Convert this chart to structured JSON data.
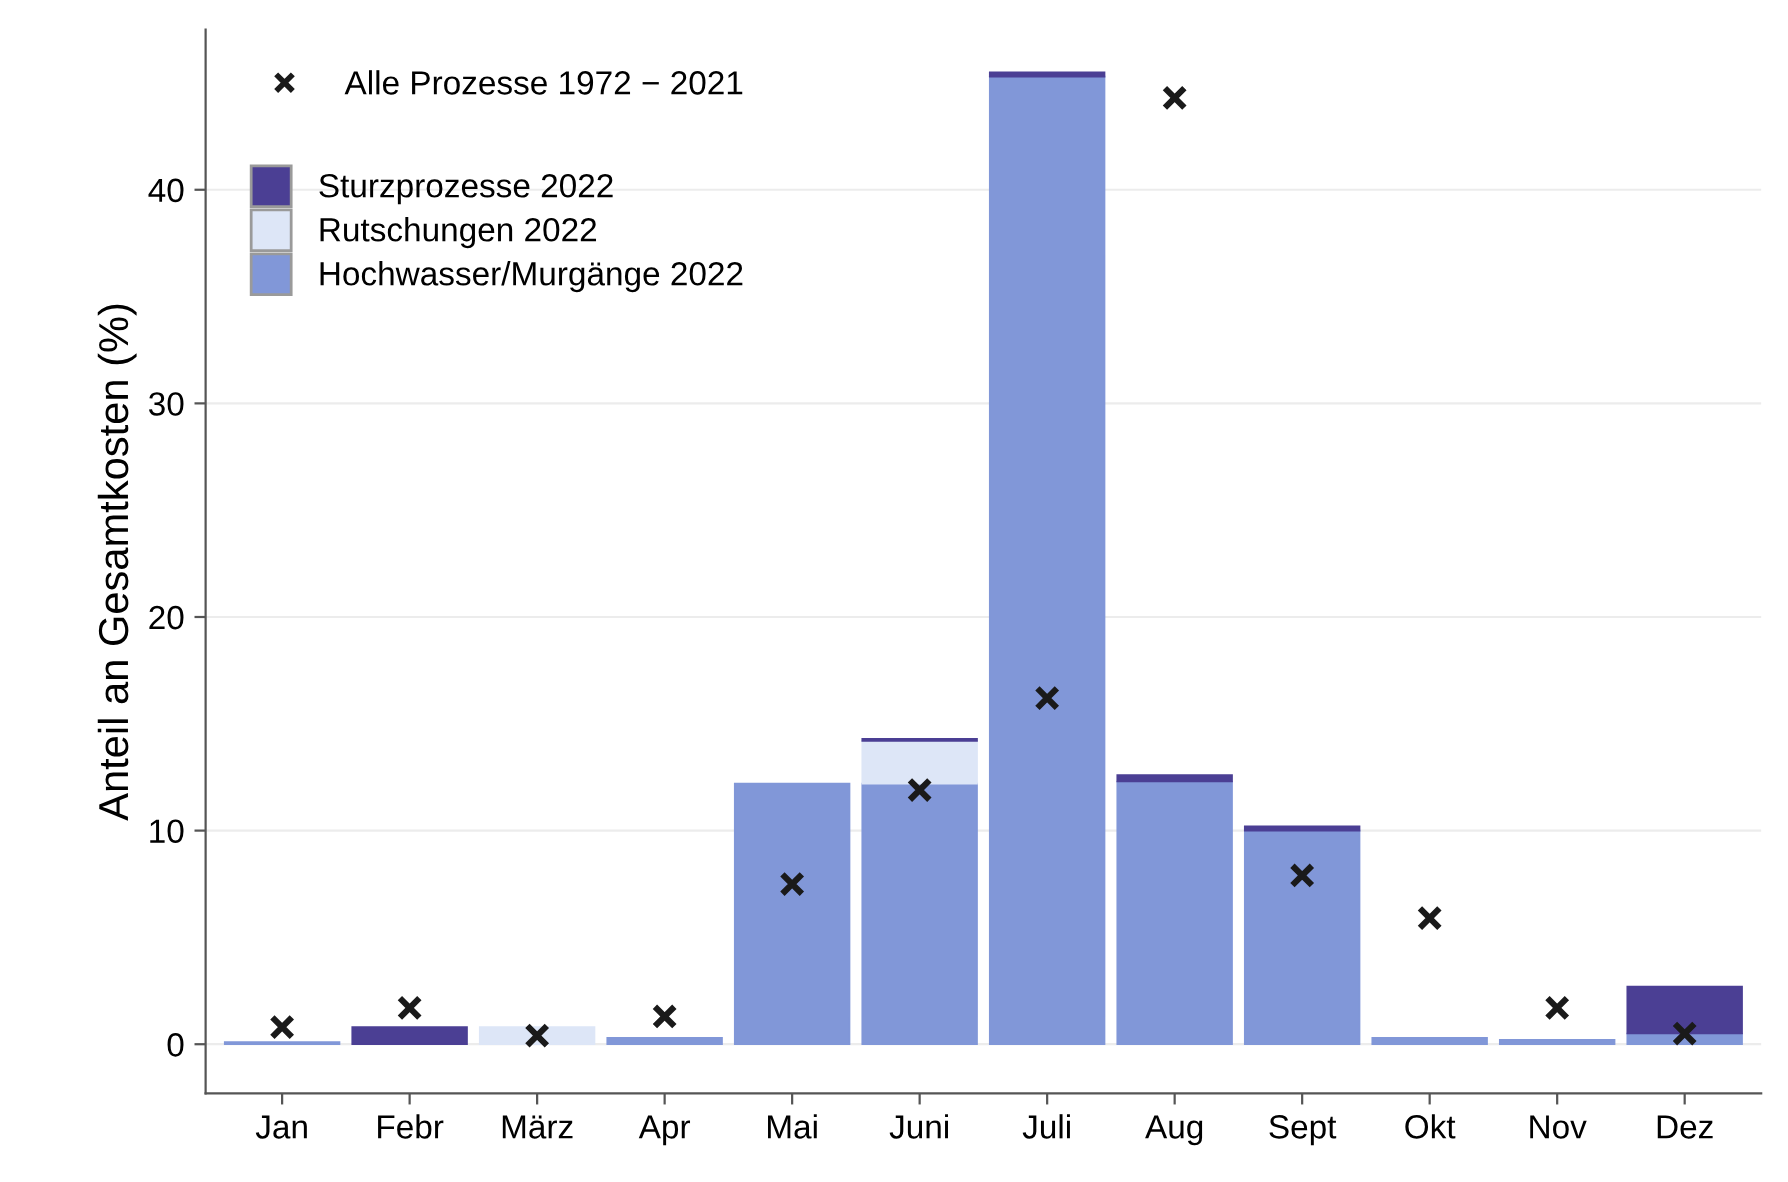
{
  "chart_data": {
    "type": "bar",
    "stacked": true,
    "ylabel": "Anteil an Gesamtkosten (%)",
    "categories": [
      "Jan",
      "Febr",
      "März",
      "Apr",
      "Mai",
      "Juni",
      "Juli",
      "Aug",
      "Sept",
      "Okt",
      "Nov",
      "Dez"
    ],
    "series": [
      {
        "name": "Hochwasser/Murgänge 2022",
        "color": "#8197d8",
        "values": [
          0.1,
          null,
          null,
          0.3,
          12.2,
          12.2,
          45.3,
          12.3,
          10.0,
          0.3,
          0.2,
          0.5
        ]
      },
      {
        "name": "Rutschungen 2022",
        "color": "#dde6f7",
        "values": [
          null,
          null,
          0.8,
          null,
          null,
          2.0,
          null,
          null,
          null,
          null,
          null,
          null
        ]
      },
      {
        "name": "Sturzprozesse 2022",
        "color": "#4b3f94",
        "values": [
          null,
          0.8,
          null,
          null,
          null,
          0.1,
          0.2,
          0.3,
          0.2,
          null,
          null,
          2.2
        ]
      },
      {
        "name": "Alle Prozesse 1972 − 2021",
        "type": "scatter",
        "marker": "cross",
        "color": "#1a1a1a",
        "values": [
          0.8,
          1.7,
          0.4,
          1.3,
          7.5,
          11.9,
          16.2,
          44.3,
          7.9,
          5.9,
          1.7,
          0.5
        ]
      }
    ],
    "ylim": [
      -2.3,
      47.5
    ],
    "yticks": [
      0,
      10,
      20,
      30,
      40
    ],
    "grid": "y",
    "legend": "top left"
  }
}
